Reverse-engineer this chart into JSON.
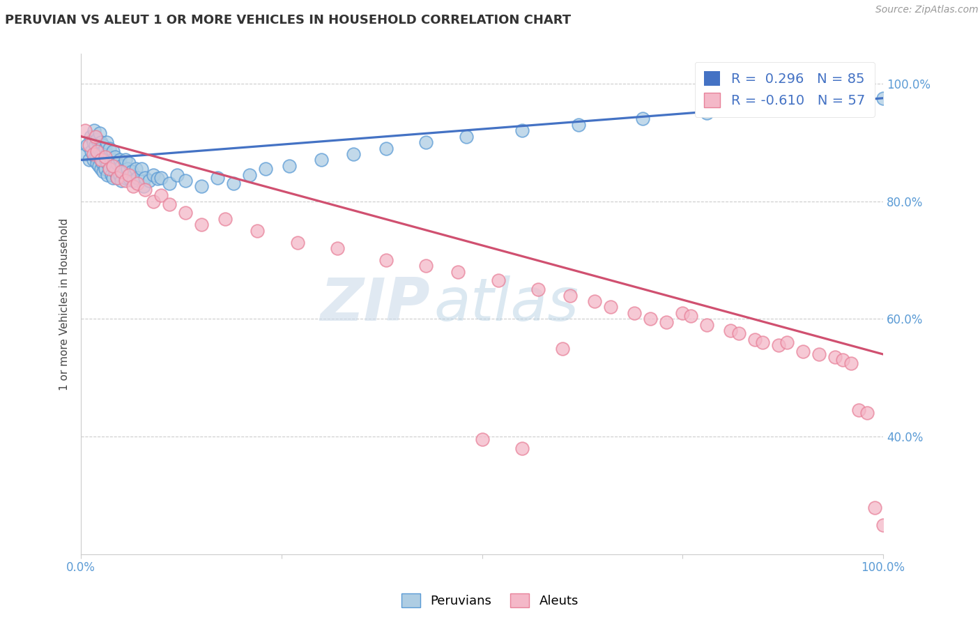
{
  "title": "PERUVIAN VS ALEUT 1 OR MORE VEHICLES IN HOUSEHOLD CORRELATION CHART",
  "source": "Source: ZipAtlas.com",
  "ylabel": "1 or more Vehicles in Household",
  "legend_peruvian": "Peruvians",
  "legend_aleut": "Aleuts",
  "r_peruvian": 0.296,
  "n_peruvian": 85,
  "r_aleut": -0.61,
  "n_aleut": 57,
  "peruvian_color": "#aecde3",
  "peruvian_edge": "#5b9bd5",
  "aleut_color": "#f4b8c8",
  "aleut_edge": "#e8829a",
  "peruvian_line_color": "#4472c4",
  "aleut_line_color": "#d05070",
  "ytick_labels": [
    "40.0%",
    "60.0%",
    "80.0%",
    "100.0%"
  ],
  "ytick_values": [
    0.4,
    0.6,
    0.8,
    1.0
  ],
  "grid_color": "#cccccc",
  "watermark_zip": "ZIP",
  "watermark_atlas": "atlas",
  "peruvians_x": [
    0.005,
    0.008,
    0.01,
    0.012,
    0.013,
    0.015,
    0.015,
    0.016,
    0.018,
    0.018,
    0.02,
    0.02,
    0.02,
    0.022,
    0.022,
    0.023,
    0.025,
    0.025,
    0.025,
    0.025,
    0.027,
    0.027,
    0.028,
    0.028,
    0.03,
    0.03,
    0.03,
    0.032,
    0.032,
    0.033,
    0.033,
    0.035,
    0.035,
    0.035,
    0.038,
    0.038,
    0.04,
    0.04,
    0.04,
    0.042,
    0.042,
    0.045,
    0.045,
    0.048,
    0.048,
    0.05,
    0.05,
    0.052,
    0.055,
    0.055,
    0.058,
    0.06,
    0.06,
    0.063,
    0.065,
    0.068,
    0.07,
    0.075,
    0.078,
    0.08,
    0.085,
    0.09,
    0.095,
    0.1,
    0.11,
    0.12,
    0.13,
    0.15,
    0.17,
    0.19,
    0.21,
    0.23,
    0.26,
    0.3,
    0.34,
    0.38,
    0.43,
    0.48,
    0.55,
    0.62,
    0.7,
    0.78,
    0.85,
    0.92,
    1.0
  ],
  "peruvians_y": [
    0.88,
    0.895,
    0.87,
    0.91,
    0.885,
    0.9,
    0.87,
    0.92,
    0.875,
    0.895,
    0.905,
    0.875,
    0.865,
    0.89,
    0.86,
    0.915,
    0.88,
    0.9,
    0.855,
    0.87,
    0.895,
    0.865,
    0.885,
    0.85,
    0.89,
    0.87,
    0.855,
    0.88,
    0.9,
    0.865,
    0.845,
    0.875,
    0.855,
    0.89,
    0.87,
    0.845,
    0.885,
    0.86,
    0.84,
    0.875,
    0.85,
    0.865,
    0.84,
    0.87,
    0.845,
    0.86,
    0.835,
    0.85,
    0.87,
    0.84,
    0.855,
    0.865,
    0.84,
    0.85,
    0.835,
    0.855,
    0.84,
    0.855,
    0.825,
    0.84,
    0.835,
    0.845,
    0.838,
    0.84,
    0.83,
    0.845,
    0.835,
    0.825,
    0.84,
    0.83,
    0.845,
    0.855,
    0.86,
    0.87,
    0.88,
    0.89,
    0.9,
    0.91,
    0.92,
    0.93,
    0.94,
    0.95,
    0.96,
    0.97,
    0.975
  ],
  "aleuts_x": [
    0.005,
    0.01,
    0.015,
    0.018,
    0.02,
    0.025,
    0.03,
    0.035,
    0.04,
    0.045,
    0.05,
    0.055,
    0.06,
    0.065,
    0.07,
    0.08,
    0.09,
    0.1,
    0.11,
    0.13,
    0.15,
    0.18,
    0.22,
    0.27,
    0.32,
    0.38,
    0.43,
    0.47,
    0.52,
    0.57,
    0.61,
    0.64,
    0.66,
    0.69,
    0.71,
    0.73,
    0.75,
    0.76,
    0.78,
    0.81,
    0.82,
    0.84,
    0.85,
    0.87,
    0.88,
    0.9,
    0.92,
    0.94,
    0.95,
    0.96,
    0.97,
    0.98,
    0.99,
    1.0,
    0.5,
    0.55,
    0.6
  ],
  "aleuts_y": [
    0.92,
    0.895,
    0.88,
    0.91,
    0.885,
    0.87,
    0.875,
    0.855,
    0.86,
    0.84,
    0.85,
    0.835,
    0.845,
    0.825,
    0.83,
    0.82,
    0.8,
    0.81,
    0.795,
    0.78,
    0.76,
    0.77,
    0.75,
    0.73,
    0.72,
    0.7,
    0.69,
    0.68,
    0.665,
    0.65,
    0.64,
    0.63,
    0.62,
    0.61,
    0.6,
    0.595,
    0.61,
    0.605,
    0.59,
    0.58,
    0.575,
    0.565,
    0.56,
    0.555,
    0.56,
    0.545,
    0.54,
    0.535,
    0.53,
    0.525,
    0.445,
    0.44,
    0.28,
    0.25,
    0.395,
    0.38,
    0.55
  ]
}
